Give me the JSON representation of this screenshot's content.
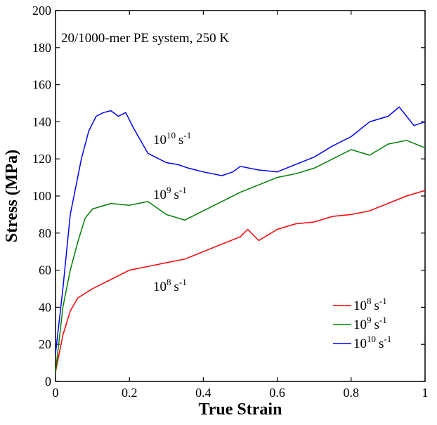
{
  "chart_data": {
    "type": "line",
    "title": "",
    "annotation": "20/1000-mer PE system, 250 K",
    "xlabel": "True Strain",
    "ylabel": "Stress (MPa)",
    "xlim": [
      0,
      1
    ],
    "ylim": [
      0,
      200
    ],
    "xticks": [
      "0",
      "0.2",
      "0.4",
      "0.6",
      "0.8",
      "1"
    ],
    "xtick_values": [
      0,
      0.2,
      0.4,
      0.6,
      0.8,
      1
    ],
    "yticks": [
      "0",
      "20",
      "40",
      "60",
      "80",
      "100",
      "120",
      "140",
      "160",
      "180",
      "200"
    ],
    "ytick_values": [
      0,
      20,
      40,
      60,
      80,
      100,
      120,
      140,
      160,
      180,
      200
    ],
    "grid": false,
    "legend_placement": "bottom-right",
    "series": [
      {
        "name_base": "10",
        "name_exp": "8",
        "name_unit": "s",
        "name_unit_exp": "-1",
        "color": "#ff0000",
        "curve_label": {
          "base": "10",
          "exp": "8",
          "unit": "s",
          "unit_exp": "-1"
        },
        "x": [
          0,
          0.02,
          0.04,
          0.06,
          0.1,
          0.15,
          0.2,
          0.25,
          0.3,
          0.35,
          0.4,
          0.45,
          0.5,
          0.52,
          0.55,
          0.6,
          0.65,
          0.7,
          0.75,
          0.8,
          0.85,
          0.9,
          0.95,
          1.0
        ],
        "y": [
          5,
          25,
          38,
          45,
          50,
          55,
          60,
          62,
          64,
          66,
          70,
          74,
          78,
          82,
          76,
          82,
          85,
          86,
          89,
          90,
          92,
          96,
          100,
          103
        ]
      },
      {
        "name_base": "10",
        "name_exp": "9",
        "name_unit": "s",
        "name_unit_exp": "-1",
        "color": "#008000",
        "curve_label": {
          "base": "10",
          "exp": "9",
          "unit": "s",
          "unit_exp": "-1"
        },
        "x": [
          0,
          0.02,
          0.04,
          0.06,
          0.08,
          0.1,
          0.15,
          0.2,
          0.25,
          0.3,
          0.35,
          0.4,
          0.45,
          0.5,
          0.55,
          0.6,
          0.65,
          0.7,
          0.75,
          0.8,
          0.85,
          0.9,
          0.95,
          1.0
        ],
        "y": [
          5,
          40,
          60,
          75,
          88,
          93,
          96,
          95,
          97,
          90,
          87,
          92,
          97,
          102,
          106,
          110,
          112,
          115,
          120,
          125,
          122,
          128,
          130,
          126
        ]
      },
      {
        "name_base": "10",
        "name_exp": "10",
        "name_unit": "s",
        "name_unit_exp": "-1",
        "color": "#0000ff",
        "curve_label": {
          "base": "10",
          "exp": "10",
          "unit": "s",
          "unit_exp": "-1"
        },
        "x": [
          0,
          0.02,
          0.04,
          0.05,
          0.07,
          0.09,
          0.11,
          0.13,
          0.15,
          0.17,
          0.19,
          0.21,
          0.23,
          0.25,
          0.27,
          0.3,
          0.33,
          0.36,
          0.4,
          0.45,
          0.48,
          0.5,
          0.55,
          0.6,
          0.65,
          0.7,
          0.75,
          0.8,
          0.85,
          0.9,
          0.93,
          0.95,
          0.97,
          1.0
        ],
        "y": [
          15,
          50,
          90,
          100,
          120,
          135,
          143,
          145,
          146,
          143,
          145,
          137,
          130,
          123,
          121,
          118,
          117,
          115,
          113,
          111,
          113,
          116,
          114,
          113,
          117,
          121,
          127,
          132,
          140,
          143,
          148,
          143,
          138,
          140
        ]
      }
    ]
  }
}
